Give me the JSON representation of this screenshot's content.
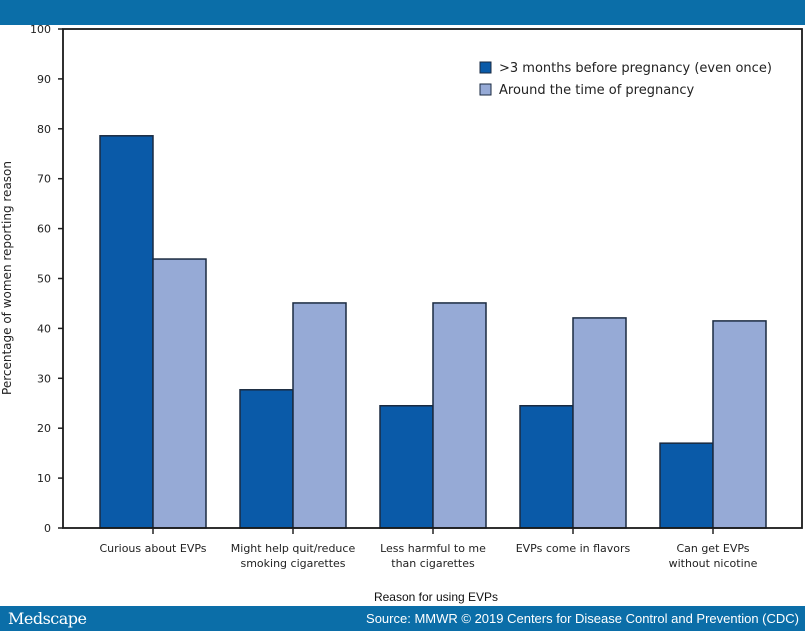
{
  "footer": {
    "brand": "Medscape",
    "source": "Source: MMWR © 2019 Centers for Disease Control and Prevention (CDC)"
  },
  "chart_data": {
    "type": "bar",
    "title": "",
    "xlabel": "Reason for using EVPs",
    "ylabel": "Percentage of women reporting reason",
    "ylim": [
      0,
      100
    ],
    "yticks": [
      0,
      10,
      20,
      30,
      40,
      50,
      60,
      70,
      80,
      90,
      100
    ],
    "grid": false,
    "legend_position": "top-right",
    "categories": [
      [
        "Curious about EVPs"
      ],
      [
        "Might help quit/reduce",
        "smoking cigarettes"
      ],
      [
        "Less harmful to me",
        "than cigarettes"
      ],
      [
        "EVPs come in flavors"
      ],
      [
        "Can get EVPs",
        "without nicotine"
      ]
    ],
    "series": [
      {
        "name": ">3 months before pregnancy (even once)",
        "color": "#0a5aa8",
        "values": [
          78.6,
          27.7,
          24.5,
          24.5,
          17.0
        ]
      },
      {
        "name": "Around the time of pregnancy",
        "color": "#96aad6",
        "values": [
          53.9,
          45.1,
          45.1,
          42.1,
          41.5
        ]
      }
    ]
  }
}
